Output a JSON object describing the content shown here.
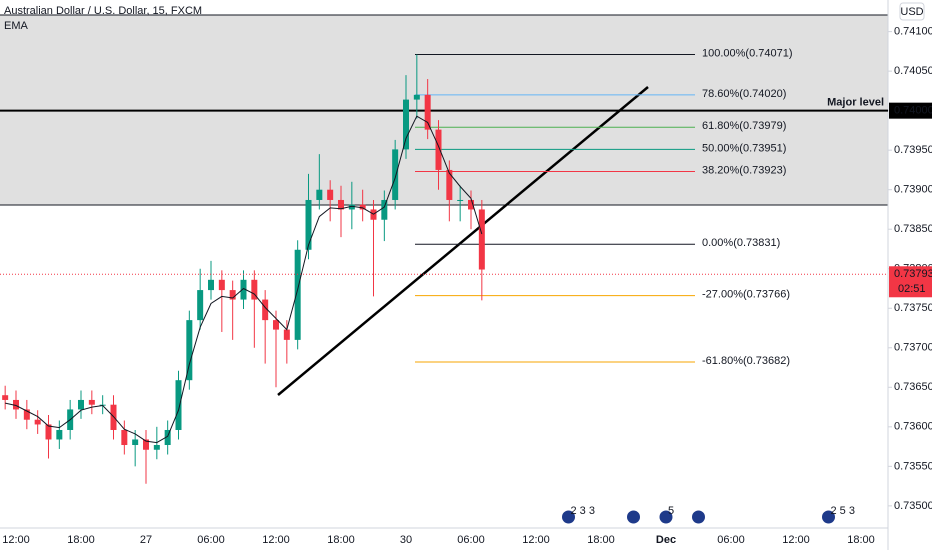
{
  "header": {
    "symbol": "Australian Dollar / U.S. Dollar, 15, FXCM",
    "indicator": "EMA",
    "currency": "USD"
  },
  "chart_data": {
    "type": "candlestick",
    "categories": [
      null,
      "12:00",
      null,
      null,
      null,
      null,
      null,
      "18:00",
      null,
      null,
      null,
      null,
      null,
      "27",
      null,
      null,
      null,
      null,
      null,
      "06:00",
      null,
      null,
      null,
      null,
      null,
      "12:00",
      null,
      null,
      null,
      null,
      null,
      "18:00",
      null,
      null,
      null,
      null,
      null,
      "30",
      null,
      null,
      null,
      null,
      null,
      "06:00",
      null,
      null,
      null,
      null,
      null,
      "12:00",
      null,
      null,
      null,
      null,
      null,
      "18:00",
      null,
      null,
      null,
      null,
      null,
      "Dec",
      null,
      null,
      null,
      null,
      null,
      "06:00",
      null,
      null,
      null,
      null,
      null,
      "12:00",
      null,
      null,
      null,
      null,
      null,
      "18:00"
    ],
    "open": [
      0.7364,
      0.73634,
      0.73622,
      0.73609,
      0.73603,
      0.73584,
      0.73596,
      0.73622,
      0.73634,
      0.73628,
      0.73628,
      0.73596,
      0.73577,
      0.73584,
      0.73571,
      0.73577,
      0.73596,
      0.73659,
      0.73735,
      0.73773,
      0.73786,
      0.73773,
      0.73761,
      0.73786,
      0.73761,
      0.73735,
      0.73723,
      0.7371,
      0.73824,
      0.73887,
      0.739,
      0.73887,
      0.73875,
      0.73881,
      0.73875,
      0.73862,
      0.73887,
      0.73951,
      0.74014,
      0.7402,
      0.73976,
      0.73925,
      0.73887,
      0.73887,
      0.73875,
      null,
      null,
      null,
      null,
      null,
      null,
      null,
      null,
      null,
      null,
      null,
      null,
      null,
      null,
      null,
      null,
      null,
      null,
      null,
      null,
      null,
      null,
      null,
      null,
      null,
      null,
      null,
      null,
      null,
      null,
      null,
      null,
      null,
      null,
      null
    ],
    "close": [
      0.73634,
      0.73622,
      0.73609,
      0.73603,
      0.73584,
      0.73596,
      0.73622,
      0.73634,
      0.73628,
      0.73628,
      0.73596,
      0.73577,
      0.73584,
      0.73571,
      0.73577,
      0.73596,
      0.73659,
      0.73735,
      0.73773,
      0.73786,
      0.73773,
      0.73761,
      0.73786,
      0.73761,
      0.73735,
      0.73723,
      0.7371,
      0.73824,
      0.73887,
      0.739,
      0.73887,
      0.73875,
      0.73881,
      0.73875,
      0.73862,
      0.73887,
      0.73951,
      0.74014,
      0.7402,
      0.73976,
      0.73925,
      0.73887,
      0.73887,
      0.73875,
      0.73799,
      null,
      null,
      null,
      null,
      null,
      null,
      null,
      null,
      null,
      null,
      null,
      null,
      null,
      null,
      null,
      null,
      null,
      null,
      null,
      null,
      null,
      null,
      null,
      null,
      null,
      null,
      null,
      null,
      null,
      null,
      null,
      null,
      null,
      null,
      null
    ],
    "high": [
      0.73652,
      0.73646,
      0.73634,
      0.73621,
      0.73615,
      0.73608,
      0.73634,
      0.73646,
      0.73646,
      0.7364,
      0.7364,
      0.73608,
      0.73596,
      0.73596,
      0.736,
      0.73608,
      0.73671,
      0.73747,
      0.738,
      0.7381,
      0.73798,
      0.73785,
      0.73798,
      0.73798,
      0.73773,
      0.73747,
      0.73735,
      0.73836,
      0.7392,
      0.73945,
      0.73912,
      0.73905,
      0.7391,
      0.739,
      0.73887,
      0.73899,
      0.73963,
      0.74045,
      0.74071,
      0.7404,
      0.73988,
      0.73937,
      0.73905,
      0.73899,
      0.73887,
      null,
      null,
      null,
      null,
      null,
      null,
      null,
      null,
      null,
      null,
      null,
      null,
      null,
      null,
      null,
      null,
      null,
      null,
      null,
      null,
      null,
      null,
      null,
      null,
      null,
      null,
      null,
      null,
      null,
      null,
      null,
      null,
      null,
      null,
      null
    ],
    "low": [
      0.73622,
      0.7361,
      0.73597,
      0.73591,
      0.7356,
      0.73572,
      0.73584,
      0.7361,
      0.73616,
      0.73616,
      0.73584,
      0.73565,
      0.7355,
      0.73528,
      0.73559,
      0.73565,
      0.73584,
      0.73647,
      0.73723,
      0.73761,
      0.7372,
      0.7371,
      0.73749,
      0.737,
      0.7368,
      0.7365,
      0.7368,
      0.73698,
      0.73812,
      0.73875,
      0.7386,
      0.7384,
      0.7385,
      0.7386,
      0.73765,
      0.73835,
      0.73875,
      0.73939,
      0.7399,
      0.73964,
      0.739,
      0.7386,
      0.7386,
      0.7385,
      0.7376,
      null,
      null,
      null,
      null,
      null,
      null,
      null,
      null,
      null,
      null,
      null,
      null,
      null,
      null,
      null,
      null,
      null,
      null,
      null,
      null,
      null,
      null,
      null,
      null,
      null,
      null,
      null,
      null,
      null,
      null,
      null,
      null,
      null,
      null,
      null
    ],
    "ema": [
      0.7363,
      0.73627,
      0.7362,
      0.73613,
      0.73601,
      0.73599,
      0.73609,
      0.73621,
      0.73625,
      0.73627,
      0.73613,
      0.73597,
      0.73591,
      0.73582,
      0.7358,
      0.73588,
      0.73621,
      0.73679,
      0.73726,
      0.73756,
      0.73765,
      0.73763,
      0.73775,
      0.73768,
      0.73751,
      0.73737,
      0.73723,
      0.73774,
      0.7383,
      0.73866,
      0.73877,
      0.73876,
      0.73879,
      0.73877,
      0.73869,
      0.73878,
      0.73915,
      0.73965,
      0.73993,
      0.73985,
      0.73955,
      0.73921,
      0.73904,
      0.73889,
      0.73844,
      null,
      null,
      null,
      null,
      null,
      null,
      null,
      null,
      null,
      null,
      null,
      null,
      null,
      null,
      null,
      null,
      null,
      null,
      null,
      null,
      null,
      null,
      null,
      null,
      null,
      null,
      null,
      null,
      null,
      null,
      null,
      null,
      null,
      null,
      null
    ],
    "up_color": "#089981",
    "down_color": "#f23645",
    "ema_color": "#131722",
    "ylim": [
      0.73472,
      0.7414
    ],
    "yticks": [
      {
        "value": 0.735,
        "label": "0.73500"
      },
      {
        "value": 0.7355,
        "label": "0.73550"
      },
      {
        "value": 0.736,
        "label": "0.73600"
      },
      {
        "value": 0.7365,
        "label": "0.73650"
      },
      {
        "value": 0.737,
        "label": "0.73700"
      },
      {
        "value": 0.7375,
        "label": "0.73750"
      },
      {
        "value": 0.738,
        "label": "0.73800"
      },
      {
        "value": 0.7385,
        "label": "0.73850"
      },
      {
        "value": 0.739,
        "label": "0.73900"
      },
      {
        "value": 0.7395,
        "label": "0.73950"
      },
      {
        "value": 0.74,
        "label": "0.74000"
      },
      {
        "value": 0.7405,
        "label": "0.74050"
      },
      {
        "value": 0.741,
        "label": "0.74100"
      }
    ],
    "fib_levels": [
      {
        "value": 0.74071,
        "label": "100.00%(0.74071)",
        "color": "#131722"
      },
      {
        "value": 0.7402,
        "label": "78.60%(0.74020)",
        "color": "#64b5f6"
      },
      {
        "value": 0.73979,
        "label": "61.80%(0.73979)",
        "color": "#4caf50"
      },
      {
        "value": 0.73951,
        "label": "50.00%(0.73951)",
        "color": "#089981"
      },
      {
        "value": 0.73923,
        "label": "38.20%(0.73923)",
        "color": "#f23645"
      },
      {
        "value": 0.73831,
        "label": "0.00%(0.73831)",
        "color": "#131722"
      },
      {
        "value": 0.73766,
        "label": "-27.00%(0.73766)",
        "color": "#f7a600"
      },
      {
        "value": 0.73682,
        "label": "-61.80%(0.73682)",
        "color": "#f7a600"
      }
    ],
    "major_level": {
      "name": "Major level",
      "value": 0.74,
      "value_label": "0.74000"
    },
    "current_price": {
      "value": 0.73793,
      "label": "0.73793",
      "countdown": "02:51"
    },
    "events": [
      {
        "at": 52,
        "label": "2 3 3"
      },
      {
        "at": 61,
        "label": "5"
      },
      {
        "at": 76,
        "label": "2 5 3"
      }
    ]
  }
}
